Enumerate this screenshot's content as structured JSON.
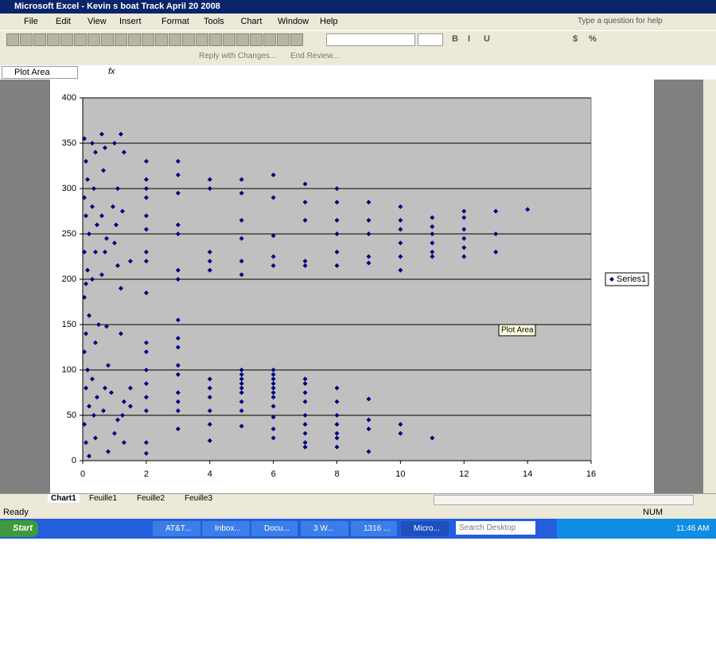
{
  "window": {
    "title": "Microsoft Excel - Kevin s boat Track April 20 2008",
    "menus": [
      "File",
      "Edit",
      "View",
      "Insert",
      "Format",
      "Tools",
      "Chart",
      "Window",
      "Help"
    ],
    "help_box": "Type a question for help",
    "format_buttons": [
      "B",
      "I",
      "U",
      "$",
      "%"
    ],
    "review_buttons": [
      "Reply with Changes...",
      "End Review..."
    ],
    "name_box": "Plot Area",
    "formula_label": "fx",
    "sheet_tabs": [
      "Chart1",
      "Feuille1",
      "Feuille2",
      "Feuille3"
    ],
    "status": "Ready",
    "status_num": "NUM",
    "taskbar": {
      "start": "Start",
      "items": [
        "AT&T...",
        "Inbox...",
        "Docu...",
        "3 W...",
        "1316 ...",
        "Micro..."
      ],
      "search": "Search Desktop",
      "time": "11:46 AM"
    }
  },
  "chart_data": {
    "type": "scatter",
    "tooltip": "Plot Area",
    "xlim": [
      0,
      16
    ],
    "xticks": [
      0,
      2,
      4,
      6,
      8,
      10,
      12,
      14,
      16
    ],
    "ylim": [
      0,
      400
    ],
    "yticks": [
      0,
      50,
      100,
      150,
      200,
      250,
      300,
      350,
      400
    ],
    "grid": true,
    "legend": "right",
    "series": [
      {
        "name": "Series1",
        "color": "#000080",
        "x": [
          0.05,
          0.1,
          0.15,
          0.05,
          0.1,
          0.2,
          0.05,
          0.15,
          0.1,
          0.05,
          0.2,
          0.1,
          0.05,
          0.15,
          0.1,
          0.2,
          0.05,
          0.1,
          0.2,
          0.3,
          0.4,
          0.35,
          0.3,
          0.45,
          0.4,
          0.3,
          0.5,
          0.4,
          0.3,
          0.45,
          0.35,
          0.4,
          0.6,
          0.7,
          0.65,
          0.6,
          0.75,
          0.7,
          0.6,
          0.75,
          0.8,
          0.7,
          0.65,
          0.8,
          1.0,
          1.1,
          0.95,
          1.05,
          1.0,
          1.1,
          0.9,
          1.0,
          1.1,
          1.2,
          1.3,
          1.25,
          1.2,
          1.2,
          1.3,
          1.25,
          1.3,
          1.5,
          1.5,
          1.5,
          2,
          2,
          2,
          2,
          2,
          2,
          2,
          2,
          2,
          2,
          2,
          2,
          2,
          2,
          2,
          2,
          2,
          3,
          3,
          3,
          3,
          3,
          3,
          3,
          3,
          3,
          3,
          3,
          3,
          3,
          3,
          3,
          3,
          4,
          4,
          4,
          4,
          4,
          4,
          4,
          4,
          4,
          4,
          4,
          5,
          5,
          5,
          5,
          5,
          5,
          5,
          5,
          5,
          5,
          5,
          5,
          5,
          5,
          5,
          6,
          6,
          6,
          6,
          6,
          6,
          6,
          6,
          6,
          6,
          6,
          6,
          6,
          6,
          6,
          6,
          7,
          7,
          7,
          7,
          7,
          7,
          7,
          7,
          7,
          7,
          7,
          7,
          7,
          7,
          8,
          8,
          8,
          8,
          8,
          8,
          8,
          8,
          8,
          8,
          8,
          8,
          8,
          9,
          9,
          9,
          9,
          9,
          9,
          9,
          9,
          9,
          10,
          10,
          10,
          10,
          10,
          10,
          10,
          10,
          11,
          11,
          11,
          11,
          11,
          11,
          11,
          12,
          12,
          12,
          12,
          12,
          12,
          13,
          13,
          13,
          14
        ],
        "values": [
          355,
          330,
          310,
          290,
          270,
          250,
          230,
          210,
          195,
          180,
          160,
          140,
          120,
          100,
          80,
          60,
          40,
          20,
          5,
          350,
          340,
          300,
          280,
          260,
          230,
          200,
          150,
          130,
          90,
          70,
          50,
          25,
          360,
          345,
          320,
          270,
          245,
          230,
          205,
          148,
          105,
          80,
          55,
          10,
          350,
          300,
          280,
          260,
          240,
          215,
          75,
          30,
          45,
          360,
          340,
          275,
          190,
          140,
          65,
          50,
          20,
          220,
          80,
          60,
          330,
          310,
          300,
          290,
          270,
          255,
          230,
          220,
          185,
          130,
          120,
          100,
          85,
          70,
          55,
          20,
          8,
          330,
          315,
          295,
          260,
          250,
          210,
          200,
          155,
          135,
          125,
          105,
          95,
          75,
          65,
          55,
          35,
          310,
          300,
          230,
          220,
          210,
          90,
          80,
          70,
          55,
          40,
          22,
          310,
          295,
          265,
          245,
          220,
          205,
          100,
          95,
          90,
          85,
          80,
          75,
          65,
          55,
          38,
          315,
          290,
          248,
          225,
          215,
          100,
          95,
          90,
          85,
          80,
          75,
          70,
          60,
          48,
          35,
          25,
          305,
          285,
          265,
          220,
          215,
          90,
          85,
          75,
          65,
          50,
          40,
          30,
          20,
          15,
          300,
          285,
          265,
          250,
          230,
          215,
          80,
          65,
          50,
          40,
          30,
          25,
          15,
          285,
          265,
          250,
          225,
          218,
          68,
          45,
          35,
          10,
          280,
          265,
          255,
          240,
          225,
          210,
          40,
          30,
          268,
          258,
          250,
          240,
          230,
          225,
          25,
          275,
          268,
          255,
          245,
          235,
          225,
          275,
          250,
          230,
          277
        ]
      }
    ]
  }
}
